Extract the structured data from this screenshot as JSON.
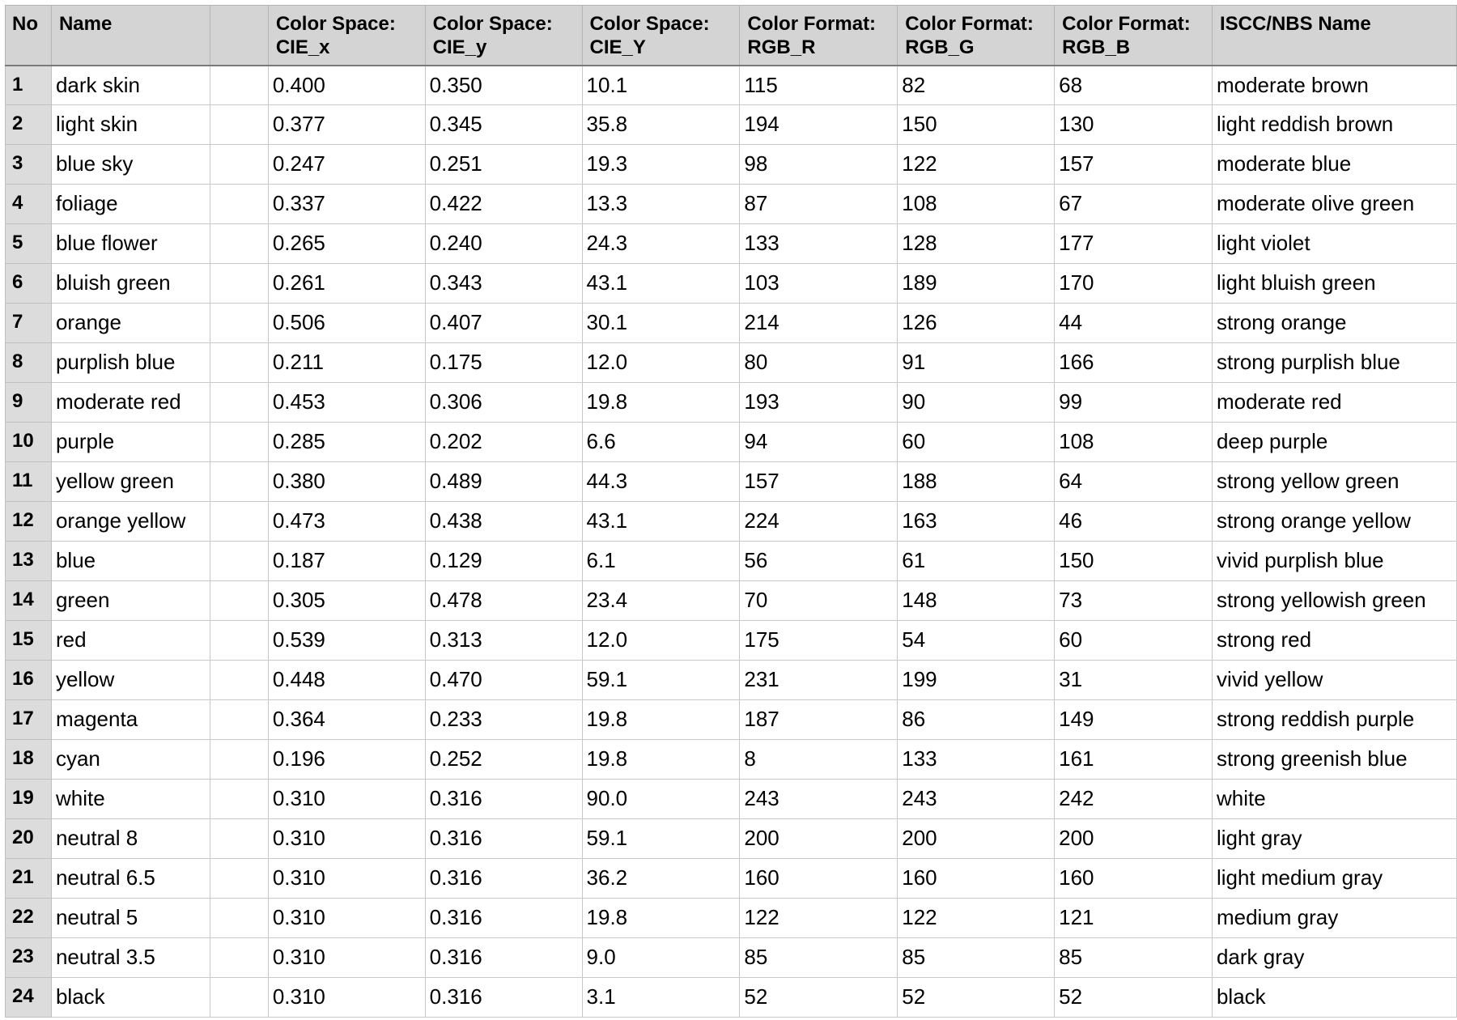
{
  "headers": {
    "no": "No",
    "name": "Name",
    "cie_x": "Color Space: CIE_x",
    "cie_y": "Color Space: CIE_y",
    "cie_Y": "Color Space: CIE_Y",
    "rgb_r": "Color Format: RGB_R",
    "rgb_g": "Color Format: RGB_G",
    "rgb_b": "Color Format: RGB_B",
    "iscc": "ISCC/NBS Name"
  },
  "rows": [
    {
      "no": "1",
      "name": "dark skin",
      "swatch": "#735244",
      "cie_x": "0.400",
      "cie_y": "0.350",
      "cie_Y": "10.1",
      "rgb_r": "115",
      "rgb_g": "82",
      "rgb_b": "68",
      "iscc": "moderate brown"
    },
    {
      "no": "2",
      "name": "light skin",
      "swatch": "#c29682",
      "cie_x": "0.377",
      "cie_y": "0.345",
      "cie_Y": "35.8",
      "rgb_r": "194",
      "rgb_g": "150",
      "rgb_b": "130",
      "iscc": "light reddish brown"
    },
    {
      "no": "3",
      "name": "blue sky",
      "swatch": "#627a9d",
      "cie_x": "0.247",
      "cie_y": "0.251",
      "cie_Y": "19.3",
      "rgb_r": "98",
      "rgb_g": "122",
      "rgb_b": "157",
      "iscc": "moderate blue"
    },
    {
      "no": "4",
      "name": "foliage",
      "swatch": "#576c43",
      "cie_x": "0.337",
      "cie_y": "0.422",
      "cie_Y": "13.3",
      "rgb_r": "87",
      "rgb_g": "108",
      "rgb_b": "67",
      "iscc": "moderate olive green"
    },
    {
      "no": "5",
      "name": "blue flower",
      "swatch": "#8580b1",
      "cie_x": "0.265",
      "cie_y": "0.240",
      "cie_Y": "24.3",
      "rgb_r": "133",
      "rgb_g": "128",
      "rgb_b": "177",
      "iscc": "light violet"
    },
    {
      "no": "6",
      "name": "bluish green",
      "swatch": "#67bdaa",
      "cie_x": "0.261",
      "cie_y": "0.343",
      "cie_Y": "43.1",
      "rgb_r": "103",
      "rgb_g": "189",
      "rgb_b": "170",
      "iscc": "light bluish green"
    },
    {
      "no": "7",
      "name": "orange",
      "swatch": "#d67e2c",
      "cie_x": "0.506",
      "cie_y": "0.407",
      "cie_Y": "30.1",
      "rgb_r": "214",
      "rgb_g": "126",
      "rgb_b": "44",
      "iscc": "strong orange"
    },
    {
      "no": "8",
      "name": "purplish blue",
      "swatch": "#505ba6",
      "cie_x": "0.211",
      "cie_y": "0.175",
      "cie_Y": "12.0",
      "rgb_r": "80",
      "rgb_g": "91",
      "rgb_b": "166",
      "iscc": "strong purplish blue"
    },
    {
      "no": "9",
      "name": "moderate red",
      "swatch": "#c15a63",
      "cie_x": "0.453",
      "cie_y": "0.306",
      "cie_Y": "19.8",
      "rgb_r": "193",
      "rgb_g": "90",
      "rgb_b": "99",
      "iscc": "moderate red"
    },
    {
      "no": "10",
      "name": "purple",
      "swatch": "#5e3c6c",
      "cie_x": "0.285",
      "cie_y": "0.202",
      "cie_Y": "6.6",
      "rgb_r": "94",
      "rgb_g": "60",
      "rgb_b": "108",
      "iscc": "deep purple"
    },
    {
      "no": "11",
      "name": "yellow green",
      "swatch": "#9dbc40",
      "cie_x": "0.380",
      "cie_y": "0.489",
      "cie_Y": "44.3",
      "rgb_r": "157",
      "rgb_g": "188",
      "rgb_b": "64",
      "iscc": "strong yellow green"
    },
    {
      "no": "12",
      "name": "orange yellow",
      "swatch": "#e0a32e",
      "cie_x": "0.473",
      "cie_y": "0.438",
      "cie_Y": "43.1",
      "rgb_r": "224",
      "rgb_g": "163",
      "rgb_b": "46",
      "iscc": "strong orange yellow"
    },
    {
      "no": "13",
      "name": "blue",
      "swatch": "#383d96",
      "cie_x": "0.187",
      "cie_y": "0.129",
      "cie_Y": "6.1",
      "rgb_r": "56",
      "rgb_g": "61",
      "rgb_b": "150",
      "iscc": "vivid purplish blue"
    },
    {
      "no": "14",
      "name": "green",
      "swatch": "#469449",
      "cie_x": "0.305",
      "cie_y": "0.478",
      "cie_Y": "23.4",
      "rgb_r": "70",
      "rgb_g": "148",
      "rgb_b": "73",
      "iscc": "strong yellowish green"
    },
    {
      "no": "15",
      "name": "red",
      "swatch": "#af363c",
      "cie_x": "0.539",
      "cie_y": "0.313",
      "cie_Y": "12.0",
      "rgb_r": "175",
      "rgb_g": "54",
      "rgb_b": "60",
      "iscc": "strong red"
    },
    {
      "no": "16",
      "name": "yellow",
      "swatch": "#e7c71f",
      "cie_x": "0.448",
      "cie_y": "0.470",
      "cie_Y": "59.1",
      "rgb_r": "231",
      "rgb_g": "199",
      "rgb_b": "31",
      "iscc": "vivid yellow"
    },
    {
      "no": "17",
      "name": "magenta",
      "swatch": "#bb5695",
      "cie_x": "0.364",
      "cie_y": "0.233",
      "cie_Y": "19.8",
      "rgb_r": "187",
      "rgb_g": "86",
      "rgb_b": "149",
      "iscc": "strong reddish purple"
    },
    {
      "no": "18",
      "name": "cyan",
      "swatch": "#0885a1",
      "cie_x": "0.196",
      "cie_y": "0.252",
      "cie_Y": "19.8",
      "rgb_r": "8",
      "rgb_g": "133",
      "rgb_b": "161",
      "iscc": "strong greenish blue"
    },
    {
      "no": "19",
      "name": "white",
      "swatch": "#f3f3f2",
      "cie_x": "0.310",
      "cie_y": "0.316",
      "cie_Y": "90.0",
      "rgb_r": "243",
      "rgb_g": "243",
      "rgb_b": "242",
      "iscc": "white"
    },
    {
      "no": "20",
      "name": "neutral 8",
      "swatch": "#c8c8c8",
      "cie_x": "0.310",
      "cie_y": "0.316",
      "cie_Y": "59.1",
      "rgb_r": "200",
      "rgb_g": "200",
      "rgb_b": "200",
      "iscc": "light gray"
    },
    {
      "no": "21",
      "name": "neutral 6.5",
      "swatch": "#a0a0a0",
      "cie_x": "0.310",
      "cie_y": "0.316",
      "cie_Y": "36.2",
      "rgb_r": "160",
      "rgb_g": "160",
      "rgb_b": "160",
      "iscc": "light medium gray"
    },
    {
      "no": "22",
      "name": "neutral 5",
      "swatch": "#7a7a79",
      "cie_x": "0.310",
      "cie_y": "0.316",
      "cie_Y": "19.8",
      "rgb_r": "122",
      "rgb_g": "122",
      "rgb_b": "121",
      "iscc": "medium gray"
    },
    {
      "no": "23",
      "name": "neutral 3.5",
      "swatch": "#555555",
      "cie_x": "0.310",
      "cie_y": "0.316",
      "cie_Y": "9.0",
      "rgb_r": "85",
      "rgb_g": "85",
      "rgb_b": "85",
      "iscc": "dark gray"
    },
    {
      "no": "24",
      "name": "black",
      "swatch": "#343434",
      "cie_x": "0.310",
      "cie_y": "0.316",
      "cie_Y": "3.1",
      "rgb_r": "52",
      "rgb_g": "52",
      "rgb_b": "52",
      "iscc": "black"
    }
  ]
}
